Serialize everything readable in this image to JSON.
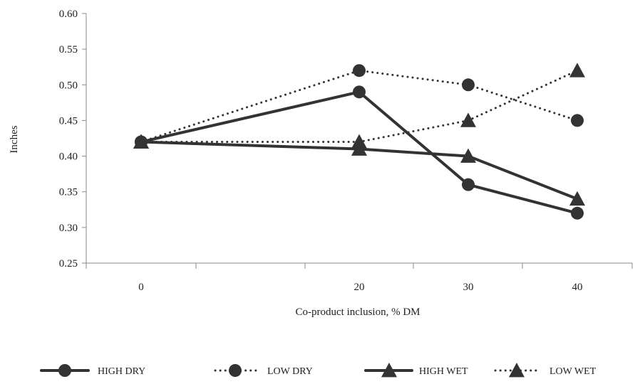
{
  "chart_data": {
    "type": "line",
    "title": "",
    "xlabel": "Co-product inclusion, % DM",
    "ylabel": "Inches",
    "x": [
      0,
      20,
      30,
      40
    ],
    "x_tick_labels": [
      "0",
      "20",
      "30",
      "40"
    ],
    "ylim": [
      0.25,
      0.6
    ],
    "y_ticks": [
      0.25,
      0.3,
      0.35,
      0.4,
      0.45,
      0.5,
      0.55,
      0.6
    ],
    "y_tick_labels": [
      "0.25",
      "0.30",
      "0.35",
      "0.40",
      "0.45",
      "0.50",
      "0.55",
      "0.60"
    ],
    "grid": false,
    "legend_position": "bottom",
    "series": [
      {
        "name": "HIGH DRY",
        "values": [
          0.42,
          0.49,
          0.36,
          0.32
        ],
        "line": "solid",
        "marker": "circle",
        "color": "#333333"
      },
      {
        "name": "LOW DRY",
        "values": [
          0.42,
          0.52,
          0.5,
          0.45
        ],
        "line": "dotted",
        "marker": "circle",
        "color": "#333333"
      },
      {
        "name": "HIGH WET",
        "values": [
          0.42,
          0.41,
          0.4,
          0.34
        ],
        "line": "solid",
        "marker": "triangle",
        "color": "#333333"
      },
      {
        "name": "LOW WET",
        "values": [
          0.42,
          0.42,
          0.45,
          0.52
        ],
        "line": "dotted",
        "marker": "triangle",
        "color": "#333333"
      }
    ]
  }
}
